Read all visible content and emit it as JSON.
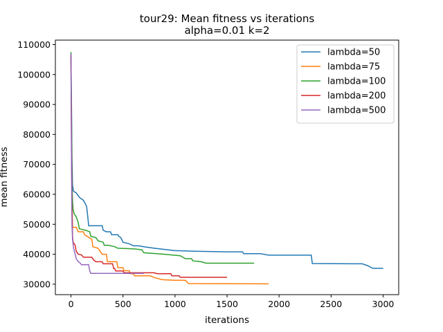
{
  "chart_data": {
    "type": "line",
    "title": "tour29: Mean fitness vs iterations",
    "subtitle": "alpha=0.01 k=2",
    "xlabel": "iterations",
    "ylabel": "mean fitness",
    "xlim": [
      -150,
      3150
    ],
    "ylim": [
      26500,
      111500
    ],
    "x_ticks": [
      0,
      500,
      1000,
      1500,
      2000,
      2500,
      3000
    ],
    "y_ticks": [
      30000,
      40000,
      50000,
      60000,
      70000,
      80000,
      90000,
      100000,
      110000
    ],
    "x_tick_labels": [
      "0",
      "500",
      "1000",
      "1500",
      "2000",
      "2500",
      "3000"
    ],
    "y_tick_labels": [
      "30000",
      "40000",
      "50000",
      "60000",
      "70000",
      "80000",
      "90000",
      "100000",
      "110000"
    ],
    "grid": false,
    "legend_position": "top-right",
    "series": [
      {
        "name": "lambda=50",
        "color": "#1f77b4",
        "points": [
          [
            0,
            106000
          ],
          [
            5,
            90000
          ],
          [
            10,
            72000
          ],
          [
            15,
            63000
          ],
          [
            25,
            61000
          ],
          [
            50,
            60500
          ],
          [
            80,
            59000
          ],
          [
            120,
            58000
          ],
          [
            150,
            56000
          ],
          [
            160,
            53000
          ],
          [
            170,
            49500
          ],
          [
            300,
            49500
          ],
          [
            310,
            48000
          ],
          [
            340,
            47500
          ],
          [
            380,
            47500
          ],
          [
            390,
            46500
          ],
          [
            450,
            46500
          ],
          [
            460,
            46000
          ],
          [
            480,
            45500
          ],
          [
            500,
            44000
          ],
          [
            560,
            43500
          ],
          [
            600,
            42800
          ],
          [
            650,
            42800
          ],
          [
            700,
            42500
          ],
          [
            800,
            42000
          ],
          [
            900,
            41600
          ],
          [
            1000,
            41200
          ],
          [
            1200,
            41000
          ],
          [
            1500,
            40800
          ],
          [
            1650,
            40800
          ],
          [
            1660,
            40200
          ],
          [
            1820,
            40200
          ],
          [
            1900,
            39700
          ],
          [
            2310,
            39700
          ],
          [
            2320,
            36900
          ],
          [
            2800,
            36800
          ],
          [
            2850,
            36200
          ],
          [
            2900,
            35300
          ],
          [
            3000,
            35300
          ]
        ]
      },
      {
        "name": "lambda=75",
        "color": "#ff7f0e",
        "points": [
          [
            0,
            106000
          ],
          [
            5,
            80000
          ],
          [
            10,
            60000
          ],
          [
            15,
            49000
          ],
          [
            50,
            49000
          ],
          [
            70,
            47500
          ],
          [
            120,
            47500
          ],
          [
            130,
            46500
          ],
          [
            200,
            45000
          ],
          [
            210,
            42500
          ],
          [
            260,
            42000
          ],
          [
            300,
            40000
          ],
          [
            340,
            40000
          ],
          [
            350,
            37500
          ],
          [
            440,
            37500
          ],
          [
            450,
            35500
          ],
          [
            500,
            35500
          ],
          [
            510,
            34500
          ],
          [
            560,
            34500
          ],
          [
            570,
            33500
          ],
          [
            600,
            33500
          ],
          [
            610,
            32800
          ],
          [
            760,
            32800
          ],
          [
            800,
            32200
          ],
          [
            880,
            31500
          ],
          [
            1000,
            31300
          ],
          [
            1100,
            31300
          ],
          [
            1130,
            30200
          ],
          [
            1900,
            30100
          ]
        ]
      },
      {
        "name": "lambda=100",
        "color": "#2ca02c",
        "points": [
          [
            0,
            107500
          ],
          [
            5,
            85000
          ],
          [
            10,
            63000
          ],
          [
            15,
            58000
          ],
          [
            20,
            55000
          ],
          [
            30,
            53500
          ],
          [
            50,
            52500
          ],
          [
            70,
            50500
          ],
          [
            80,
            48500
          ],
          [
            140,
            48000
          ],
          [
            180,
            47500
          ],
          [
            190,
            46000
          ],
          [
            240,
            45500
          ],
          [
            260,
            44500
          ],
          [
            310,
            44000
          ],
          [
            320,
            43000
          ],
          [
            360,
            43000
          ],
          [
            420,
            42500
          ],
          [
            450,
            42000
          ],
          [
            600,
            41800
          ],
          [
            680,
            41500
          ],
          [
            700,
            40500
          ],
          [
            900,
            40000
          ],
          [
            1050,
            39500
          ],
          [
            1100,
            38500
          ],
          [
            1160,
            38500
          ],
          [
            1170,
            37800
          ],
          [
            1250,
            37500
          ],
          [
            1300,
            37000
          ],
          [
            1760,
            37000
          ]
        ]
      },
      {
        "name": "lambda=200",
        "color": "#d62728",
        "points": [
          [
            0,
            106500
          ],
          [
            5,
            75000
          ],
          [
            10,
            55000
          ],
          [
            15,
            46000
          ],
          [
            20,
            44000
          ],
          [
            40,
            43000
          ],
          [
            50,
            41000
          ],
          [
            70,
            40000
          ],
          [
            100,
            39800
          ],
          [
            120,
            39000
          ],
          [
            200,
            39000
          ],
          [
            220,
            38000
          ],
          [
            240,
            37500
          ],
          [
            300,
            37500
          ],
          [
            310,
            36800
          ],
          [
            400,
            36800
          ],
          [
            410,
            35200
          ],
          [
            420,
            35200
          ],
          [
            430,
            34400
          ],
          [
            500,
            34400
          ],
          [
            510,
            33800
          ],
          [
            800,
            33800
          ],
          [
            830,
            33500
          ],
          [
            960,
            33500
          ],
          [
            970,
            32800
          ],
          [
            1040,
            32800
          ],
          [
            1050,
            32300
          ],
          [
            1500,
            32300
          ]
        ]
      },
      {
        "name": "lambda=500",
        "color": "#9467bd",
        "points": [
          [
            0,
            107000
          ],
          [
            5,
            70000
          ],
          [
            10,
            50000
          ],
          [
            15,
            45000
          ],
          [
            25,
            42000
          ],
          [
            40,
            40000
          ],
          [
            50,
            38500
          ],
          [
            70,
            37500
          ],
          [
            90,
            37000
          ],
          [
            100,
            36500
          ],
          [
            170,
            36500
          ],
          [
            180,
            34500
          ],
          [
            190,
            33600
          ],
          [
            700,
            33600
          ]
        ]
      }
    ]
  }
}
